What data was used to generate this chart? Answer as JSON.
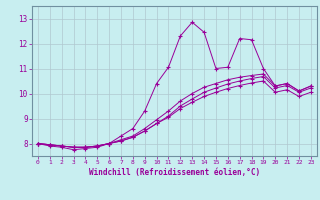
{
  "xlabel": "Windchill (Refroidissement éolien,°C)",
  "bg_color": "#c8eef0",
  "line_color": "#990099",
  "grid_color": "#b0c8d0",
  "xlim": [
    -0.5,
    23.5
  ],
  "ylim": [
    7.5,
    13.5
  ],
  "xticks": [
    0,
    1,
    2,
    3,
    4,
    5,
    6,
    7,
    8,
    9,
    10,
    11,
    12,
    13,
    14,
    15,
    16,
    17,
    18,
    19,
    20,
    21,
    22,
    23
  ],
  "yticks": [
    8,
    9,
    10,
    11,
    12,
    13
  ],
  "line1_x": [
    0,
    1,
    2,
    3,
    4,
    5,
    6,
    7,
    8,
    9,
    10,
    11,
    12,
    13,
    14,
    15,
    16,
    17,
    18,
    19,
    20,
    21,
    22,
    23
  ],
  "line1_y": [
    8.0,
    7.9,
    7.85,
    7.75,
    7.8,
    7.85,
    8.0,
    8.3,
    8.6,
    9.3,
    10.4,
    11.05,
    12.3,
    12.85,
    12.45,
    11.0,
    11.05,
    12.2,
    12.15,
    11.0,
    10.3,
    10.4,
    10.1,
    10.3
  ],
  "line2_x": [
    0,
    1,
    2,
    3,
    4,
    5,
    6,
    7,
    8,
    9,
    10,
    11,
    12,
    13,
    14,
    15,
    16,
    17,
    18,
    19,
    20,
    21,
    22,
    23
  ],
  "line2_y": [
    8.0,
    7.95,
    7.9,
    7.85,
    7.85,
    7.9,
    8.0,
    8.15,
    8.3,
    8.6,
    8.95,
    9.3,
    9.7,
    10.0,
    10.25,
    10.4,
    10.55,
    10.65,
    10.72,
    10.78,
    10.3,
    10.4,
    10.1,
    10.3
  ],
  "line3_x": [
    0,
    1,
    2,
    3,
    4,
    5,
    6,
    7,
    8,
    9,
    10,
    11,
    12,
    13,
    14,
    15,
    16,
    17,
    18,
    19,
    20,
    21,
    22,
    23
  ],
  "line3_y": [
    8.0,
    7.95,
    7.9,
    7.85,
    7.85,
    7.9,
    8.0,
    8.1,
    8.25,
    8.5,
    8.8,
    9.05,
    9.4,
    9.65,
    9.88,
    10.05,
    10.2,
    10.32,
    10.42,
    10.5,
    10.05,
    10.15,
    9.88,
    10.05
  ],
  "line4_x": [
    0,
    1,
    2,
    3,
    4,
    5,
    6,
    7,
    8,
    9,
    10,
    11,
    12,
    13,
    14,
    15,
    16,
    17,
    18,
    19,
    20,
    21,
    22,
    23
  ],
  "line4_y": [
    8.0,
    7.95,
    7.9,
    7.85,
    7.85,
    7.9,
    8.0,
    8.1,
    8.25,
    8.5,
    8.8,
    9.1,
    9.5,
    9.78,
    10.05,
    10.22,
    10.38,
    10.5,
    10.6,
    10.68,
    10.22,
    10.32,
    10.05,
    10.22
  ]
}
